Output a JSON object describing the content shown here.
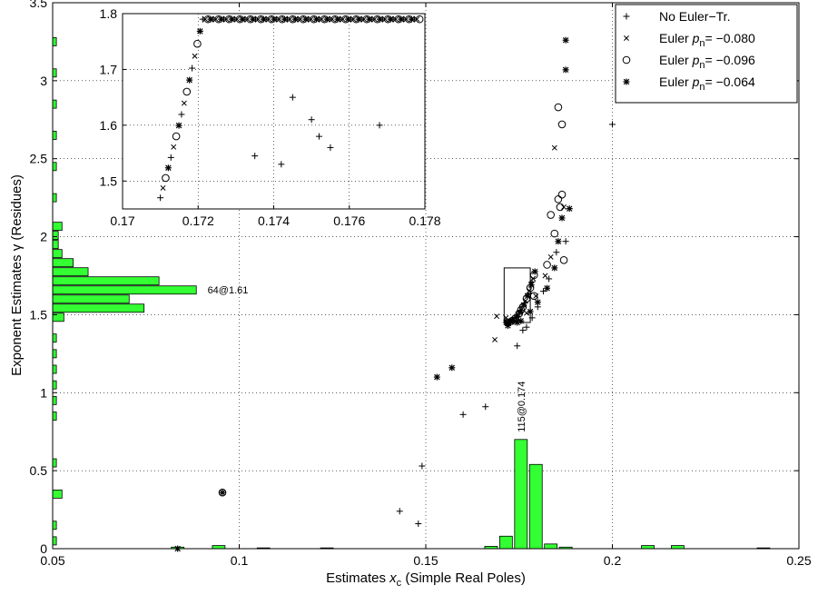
{
  "chart_data": {
    "type": "scatter",
    "xlabel_prefix": "Estimates ",
    "xlabel_var": "x",
    "xlabel_sub": "c",
    "xlabel_suffix": " (Simple Real Poles)",
    "ylabel": "Exponent Estimates γ (Residues)",
    "xlim": [
      0.05,
      0.25
    ],
    "ylim": [
      0,
      3.5
    ],
    "xticks": [
      "0.05",
      "0.1",
      "0.15",
      "0.2",
      "0.25"
    ],
    "yticks": [
      "0",
      "0.5",
      "1",
      "1.5",
      "2",
      "2.5",
      "3",
      "3.5"
    ],
    "grid": true,
    "legend_position": "top-right",
    "colors": {
      "histogram": "#33ff33",
      "markers": "#000000"
    },
    "legend": [
      {
        "marker": "+",
        "text": "No Euler−Tr."
      },
      {
        "marker": "x",
        "text": "Euler ",
        "var": "p",
        "sub": "n",
        "value": "= −0.080"
      },
      {
        "marker": "o",
        "text": "Euler ",
        "var": "p",
        "sub": "n",
        "value": "= −0.096"
      },
      {
        "marker": "*",
        "text": "Euler ",
        "var": "p",
        "sub": "n",
        "value": "= −0.064"
      }
    ],
    "histogram_x": {
      "peak_label": "115@0.174",
      "bins": [
        {
          "x": 0.0835,
          "h": 0.01
        },
        {
          "x": 0.0945,
          "h": 0.02
        },
        {
          "x": 0.1065,
          "h": 0.005
        },
        {
          "x": 0.1235,
          "h": 0.005
        },
        {
          "x": 0.1675,
          "h": 0.015
        },
        {
          "x": 0.1715,
          "h": 0.08
        },
        {
          "x": 0.1755,
          "h": 0.7
        },
        {
          "x": 0.1795,
          "h": 0.54
        },
        {
          "x": 0.1835,
          "h": 0.03
        },
        {
          "x": 0.1875,
          "h": 0.01
        },
        {
          "x": 0.2095,
          "h": 0.02
        },
        {
          "x": 0.2175,
          "h": 0.02
        },
        {
          "x": 0.2405,
          "h": 0.005
        }
      ]
    },
    "histogram_y": {
      "peak_label": "64@1.61",
      "bins": [
        {
          "y": 0.05,
          "len": 0.001
        },
        {
          "y": 0.15,
          "len": 0.001
        },
        {
          "y": 0.35,
          "len": 0.0025
        },
        {
          "y": 0.55,
          "len": 0.001
        },
        {
          "y": 0.85,
          "len": 0.001
        },
        {
          "y": 0.95,
          "len": 0.001
        },
        {
          "y": 1.05,
          "len": 0.001
        },
        {
          "y": 1.15,
          "len": 0.001
        },
        {
          "y": 1.25,
          "len": 0.001
        },
        {
          "y": 1.35,
          "len": 0.001
        },
        {
          "y": 1.4833,
          "len": 0.003
        },
        {
          "y": 1.5417,
          "len": 0.0245
        },
        {
          "y": 1.6,
          "len": 0.0205
        },
        {
          "y": 1.6583,
          "len": 0.0385
        },
        {
          "y": 1.7167,
          "len": 0.0285
        },
        {
          "y": 1.775,
          "len": 0.0095
        },
        {
          "y": 1.8333,
          "len": 0.0055
        },
        {
          "y": 1.8917,
          "len": 0.0025
        },
        {
          "y": 1.95,
          "len": 0.0015
        },
        {
          "y": 2.0083,
          "len": 0.0015
        },
        {
          "y": 2.0667,
          "len": 0.0025
        },
        {
          "y": 2.25,
          "len": 0.001
        },
        {
          "y": 2.45,
          "len": 0.001
        },
        {
          "y": 2.65,
          "len": 0.001
        },
        {
          "y": 2.85,
          "len": 0.001
        },
        {
          "y": 3.05,
          "len": 0.001
        },
        {
          "y": 3.25,
          "len": 0.001
        }
      ]
    },
    "points": {
      "no_euler": [
        [
          0.143,
          0.24
        ],
        [
          0.148,
          0.16
        ],
        [
          0.149,
          0.53
        ],
        [
          0.16,
          0.86
        ],
        [
          0.166,
          0.91
        ],
        [
          0.1745,
          1.3
        ],
        [
          0.176,
          1.4
        ],
        [
          0.177,
          1.42
        ],
        [
          0.1785,
          1.48
        ],
        [
          0.18,
          1.55
        ],
        [
          0.1815,
          1.65
        ],
        [
          0.183,
          1.73
        ],
        [
          0.185,
          1.9
        ],
        [
          0.1875,
          1.97
        ],
        [
          0.2,
          2.72
        ]
      ],
      "euler_080": [
        [
          0.169,
          1.49
        ],
        [
          0.1715,
          1.48
        ],
        [
          0.1685,
          1.34
        ],
        [
          0.1715,
          1.45
        ],
        [
          0.173,
          1.46
        ],
        [
          0.177,
          1.51
        ],
        [
          0.1795,
          1.62
        ],
        [
          0.182,
          1.75
        ],
        [
          0.1835,
          1.87
        ],
        [
          0.1845,
          2.57
        ],
        [
          0.187,
          2.19
        ],
        [
          0.1735,
          1.47
        ]
      ],
      "euler_096": [
        [
          0.0955,
          0.36
        ],
        [
          0.1755,
          1.53
        ],
        [
          0.179,
          1.62
        ],
        [
          0.1825,
          1.82
        ],
        [
          0.1845,
          2.02
        ],
        [
          0.186,
          2.19
        ],
        [
          0.1865,
          2.27
        ],
        [
          0.1855,
          2.24
        ],
        [
          0.187,
          1.85
        ],
        [
          0.1835,
          2.14
        ],
        [
          0.1865,
          2.72
        ],
        [
          0.1855,
          2.83
        ]
      ],
      "euler_064": [
        [
          0.0835,
          0.0
        ],
        [
          0.0955,
          0.36
        ],
        [
          0.153,
          1.1
        ],
        [
          0.157,
          1.16
        ],
        [
          0.172,
          1.43
        ],
        [
          0.1745,
          1.45
        ],
        [
          0.1755,
          1.46
        ],
        [
          0.178,
          1.52
        ],
        [
          0.18,
          1.58
        ],
        [
          0.1825,
          1.67
        ],
        [
          0.1845,
          1.8
        ],
        [
          0.1855,
          1.97
        ],
        [
          0.1865,
          2.12
        ],
        [
          0.1885,
          2.18
        ],
        [
          0.1875,
          3.07
        ],
        [
          0.1875,
          3.26
        ]
      ]
    },
    "zoom_box": {
      "xlim": [
        0.171,
        0.178
      ],
      "ylim": [
        1.45,
        1.8
      ]
    },
    "inset": {
      "xlim": [
        0.17,
        0.178
      ],
      "ylim": [
        1.45,
        1.8
      ],
      "xticks": [
        "0.17",
        "0.172",
        "0.174",
        "0.176",
        "0.178"
      ],
      "yticks": [
        "1.5",
        "1.6",
        "1.7",
        "1.8"
      ],
      "outliers_no_euler": [
        [
          0.1745,
          1.65
        ],
        [
          0.1768,
          1.6
        ],
        [
          0.175,
          1.61
        ],
        [
          0.1755,
          1.56
        ],
        [
          0.1742,
          1.53
        ],
        [
          0.1735,
          1.545
        ],
        [
          0.1752,
          1.58
        ]
      ]
    }
  }
}
